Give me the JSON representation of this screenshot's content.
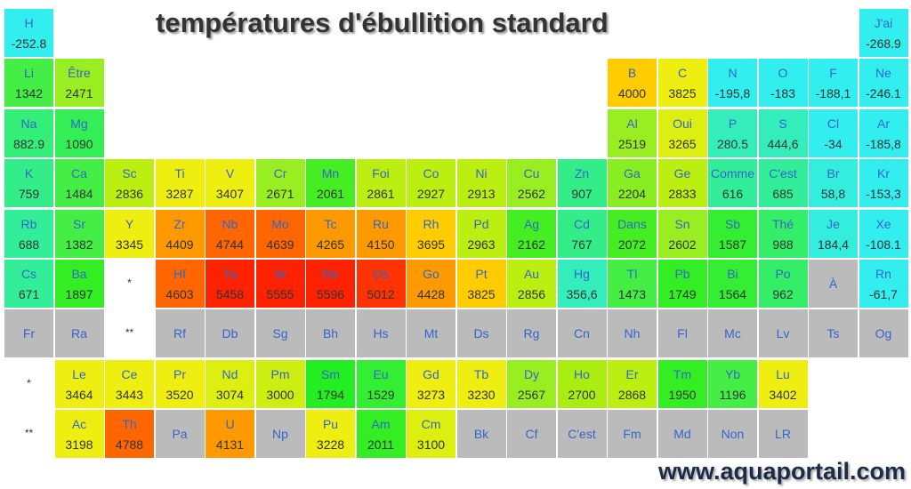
{
  "title": "températures d'ébullition standard",
  "footer": "www.aquaportail.com",
  "rows": [
    [
      {
        "symbol": "H",
        "value": "-252.8",
        "color": "#33eeee"
      },
      null,
      null,
      null,
      null,
      null,
      null,
      null,
      null,
      null,
      null,
      null,
      null,
      null,
      null,
      null,
      null,
      {
        "symbol": "J'ai",
        "value": "-268.9",
        "color": "#33eeee"
      }
    ],
    [
      {
        "symbol": "Li",
        "value": "1342",
        "color": "#44ee44"
      },
      {
        "symbol": "Être",
        "value": "2471",
        "color": "#99ee22"
      },
      null,
      null,
      null,
      null,
      null,
      null,
      null,
      null,
      null,
      null,
      {
        "symbol": "B",
        "value": "4000",
        "color": "#ffcc00"
      },
      {
        "symbol": "C",
        "value": "3825",
        "color": "#eeee11"
      },
      {
        "symbol": "N",
        "value": "-195,8",
        "color": "#33eeee"
      },
      {
        "symbol": "O",
        "value": "-183",
        "color": "#33eeee"
      },
      {
        "symbol": "F",
        "value": "-188,1",
        "color": "#33eeee"
      },
      {
        "symbol": "Ne",
        "value": "-246.1",
        "color": "#33eeee"
      }
    ],
    [
      {
        "symbol": "Na",
        "value": "882.9",
        "color": "#33ee77"
      },
      {
        "symbol": "Mg",
        "value": "1090",
        "color": "#33ee55"
      },
      null,
      null,
      null,
      null,
      null,
      null,
      null,
      null,
      null,
      null,
      {
        "symbol": "Al",
        "value": "2519",
        "color": "#99ee22"
      },
      {
        "symbol": "Oui",
        "value": "3265",
        "color": "#ddee11"
      },
      {
        "symbol": "P",
        "value": "280.5",
        "color": "#33eebb"
      },
      {
        "symbol": "S",
        "value": "444,6",
        "color": "#33eebb"
      },
      {
        "symbol": "Cl",
        "value": "-34",
        "color": "#33eeee"
      },
      {
        "symbol": "Ar",
        "value": "-185,8",
        "color": "#33eeee"
      }
    ],
    [
      {
        "symbol": "K",
        "value": "759",
        "color": "#33ee88"
      },
      {
        "symbol": "Ca",
        "value": "1484",
        "color": "#44ee44"
      },
      {
        "symbol": "Sc",
        "value": "2836",
        "color": "#bbee11"
      },
      {
        "symbol": "Ti",
        "value": "3287",
        "color": "#eeee11"
      },
      {
        "symbol": "V",
        "value": "3407",
        "color": "#eeee11"
      },
      {
        "symbol": "Cr",
        "value": "2671",
        "color": "#99ee22"
      },
      {
        "symbol": "Mn",
        "value": "2061",
        "color": "#44ee22"
      },
      {
        "symbol": "Foi",
        "value": "2861",
        "color": "#bbee11"
      },
      {
        "symbol": "Co",
        "value": "2927",
        "color": "#bbee11"
      },
      {
        "symbol": "Ni",
        "value": "2913",
        "color": "#bbee11"
      },
      {
        "symbol": "Cu",
        "value": "2562",
        "color": "#99ee22"
      },
      {
        "symbol": "Zn",
        "value": "907",
        "color": "#33ee88"
      },
      {
        "symbol": "Ga",
        "value": "2204",
        "color": "#88ee22"
      },
      {
        "symbol": "Ge",
        "value": "2833",
        "color": "#bbee11"
      },
      {
        "symbol": "Comme",
        "value": "616",
        "color": "#33ee99"
      },
      {
        "symbol": "C'est",
        "value": "685",
        "color": "#33ee99"
      },
      {
        "symbol": "Br",
        "value": "58,8",
        "color": "#33eedd"
      },
      {
        "symbol": "Kr",
        "value": "-153,3",
        "color": "#33eeee"
      }
    ],
    [
      {
        "symbol": "Rb",
        "value": "688",
        "color": "#33ee99"
      },
      {
        "symbol": "Sr",
        "value": "1382",
        "color": "#44ee44"
      },
      {
        "symbol": "Y",
        "value": "3345",
        "color": "#eeee11"
      },
      {
        "symbol": "Zr",
        "value": "4409",
        "color": "#ff9900"
      },
      {
        "symbol": "Nb",
        "value": "4744",
        "color": "#ff6600"
      },
      {
        "symbol": "Mo",
        "value": "4639",
        "color": "#ff6600"
      },
      {
        "symbol": "Tc",
        "value": "4265",
        "color": "#ff9900"
      },
      {
        "symbol": "Ru",
        "value": "4150",
        "color": "#ff9900"
      },
      {
        "symbol": "Rh",
        "value": "3695",
        "color": "#ffcc00"
      },
      {
        "symbol": "Pd",
        "value": "2963",
        "color": "#bbee11"
      },
      {
        "symbol": "Ag",
        "value": "2162",
        "color": "#44ee22"
      },
      {
        "symbol": "Cd",
        "value": "767",
        "color": "#33ee88"
      },
      {
        "symbol": "Dans",
        "value": "2072",
        "color": "#44ee22"
      },
      {
        "symbol": "Sn",
        "value": "2602",
        "color": "#99ee22"
      },
      {
        "symbol": "Sb",
        "value": "1587",
        "color": "#33ee33"
      },
      {
        "symbol": "Thé",
        "value": "988",
        "color": "#33ee66"
      },
      {
        "symbol": "Je",
        "value": "184,4",
        "color": "#33eedd"
      },
      {
        "symbol": "Xe",
        "value": "-108.1",
        "color": "#33eeee"
      }
    ],
    [
      {
        "symbol": "Cs",
        "value": "671",
        "color": "#33ee99"
      },
      {
        "symbol": "Ba",
        "value": "1897",
        "color": "#33ee22"
      },
      {
        "symbol": "*",
        "color": "#ffffff"
      },
      {
        "symbol": "Hf",
        "value": "4603",
        "color": "#ff6600"
      },
      {
        "symbol": "Ta",
        "value": "5458",
        "color": "#ff2200"
      },
      {
        "symbol": "W",
        "value": "5555",
        "color": "#ff2200"
      },
      {
        "symbol": "Re",
        "value": "5596",
        "color": "#ff2200"
      },
      {
        "symbol": "Os",
        "value": "5012",
        "color": "#ff3300"
      },
      {
        "symbol": "Go",
        "value": "4428",
        "color": "#ff9900"
      },
      {
        "symbol": "Pt",
        "value": "3825",
        "color": "#ffcc00"
      },
      {
        "symbol": "Au",
        "value": "2856",
        "color": "#bbee11"
      },
      {
        "symbol": "Hg",
        "value": "356,6",
        "color": "#33eebb"
      },
      {
        "symbol": "Tl",
        "value": "1473",
        "color": "#44ee44"
      },
      {
        "symbol": "Pb",
        "value": "1749",
        "color": "#33ee22"
      },
      {
        "symbol": "Bi",
        "value": "1564",
        "color": "#33ee33"
      },
      {
        "symbol": "Po",
        "value": "962",
        "color": "#33ee66"
      },
      {
        "symbol": "À",
        "color": "#bbbbbb"
      },
      {
        "symbol": "Rn",
        "value": "-61,7",
        "color": "#33eeee"
      }
    ],
    [
      {
        "symbol": "Fr",
        "color": "#bbbbbb"
      },
      {
        "symbol": "Ra",
        "color": "#bbbbbb"
      },
      {
        "symbol": "**",
        "color": "#ffffff"
      },
      {
        "symbol": "Rf",
        "color": "#bbbbbb"
      },
      {
        "symbol": "Db",
        "color": "#bbbbbb"
      },
      {
        "symbol": "Sg",
        "color": "#bbbbbb"
      },
      {
        "symbol": "Bh",
        "color": "#bbbbbb"
      },
      {
        "symbol": "Hs",
        "color": "#bbbbbb"
      },
      {
        "symbol": "Mt",
        "color": "#bbbbbb"
      },
      {
        "symbol": "Ds",
        "color": "#bbbbbb"
      },
      {
        "symbol": "Rg",
        "color": "#bbbbbb"
      },
      {
        "symbol": "Cn",
        "color": "#bbbbbb"
      },
      {
        "symbol": "Nh",
        "color": "#bbbbbb"
      },
      {
        "symbol": "Fl",
        "color": "#bbbbbb"
      },
      {
        "symbol": "Mc",
        "color": "#bbbbbb"
      },
      {
        "symbol": "Lv",
        "color": "#bbbbbb"
      },
      {
        "symbol": "Ts",
        "color": "#bbbbbb"
      },
      {
        "symbol": "Og",
        "color": "#bbbbbb"
      }
    ],
    [
      {
        "symbol": "*",
        "color": "#ffffff"
      },
      {
        "symbol": "Le",
        "value": "3464",
        "color": "#eeee11"
      },
      {
        "symbol": "Ce",
        "value": "3443",
        "color": "#eeee11"
      },
      {
        "symbol": "Pr",
        "value": "3520",
        "color": "#eeee11"
      },
      {
        "symbol": "Nd",
        "value": "3074",
        "color": "#ddee11"
      },
      {
        "symbol": "Pm",
        "value": "3000",
        "color": "#ccee11"
      },
      {
        "symbol": "Sm",
        "value": "1794",
        "color": "#22ee22"
      },
      {
        "symbol": "Eu",
        "value": "1529",
        "color": "#33ee33"
      },
      {
        "symbol": "Gd",
        "value": "3273",
        "color": "#eeee11"
      },
      {
        "symbol": "Tb",
        "value": "3230",
        "color": "#eeee11"
      },
      {
        "symbol": "Dy",
        "value": "2567",
        "color": "#99ee22"
      },
      {
        "symbol": "Ho",
        "value": "2700",
        "color": "#aaee11"
      },
      {
        "symbol": "Er",
        "value": "2868",
        "color": "#bbee11"
      },
      {
        "symbol": "Tm",
        "value": "1950",
        "color": "#33ee22"
      },
      {
        "symbol": "Yb",
        "value": "1196",
        "color": "#44ee44"
      },
      {
        "symbol": "Lu",
        "value": "3402",
        "color": "#eeee11"
      },
      null,
      null
    ],
    [
      {
        "symbol": "**",
        "color": "#ffffff"
      },
      {
        "symbol": "Ac",
        "value": "3198",
        "color": "#eeee11"
      },
      {
        "symbol": "Th",
        "value": "4788",
        "color": "#ff6600"
      },
      {
        "symbol": "Pa",
        "color": "#bbbbbb"
      },
      {
        "symbol": "U",
        "value": "4131",
        "color": "#ff9900"
      },
      {
        "symbol": "Np",
        "color": "#bbbbbb"
      },
      {
        "symbol": "Pu",
        "value": "3228",
        "color": "#eeee11"
      },
      {
        "symbol": "Am",
        "value": "2011",
        "color": "#33ee22"
      },
      {
        "symbol": "Cm",
        "value": "3100",
        "color": "#ddee11"
      },
      {
        "symbol": "Bk",
        "color": "#bbbbbb"
      },
      {
        "symbol": "Cf",
        "color": "#bbbbbb"
      },
      {
        "symbol": "C'est",
        "color": "#bbbbbb"
      },
      {
        "symbol": "Fm",
        "color": "#bbbbbb"
      },
      {
        "symbol": "Md",
        "color": "#bbbbbb"
      },
      {
        "symbol": "Non",
        "color": "#bbbbbb"
      },
      {
        "symbol": "LR",
        "color": "#bbbbbb"
      },
      null,
      null
    ]
  ]
}
